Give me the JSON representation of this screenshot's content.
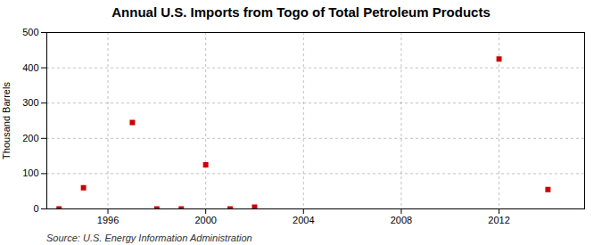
{
  "chart_data": {
    "type": "scatter",
    "title": "Annual U.S. Imports from Togo of Total Petroleum Products",
    "ylabel": "Thousand Barrels",
    "annotation": "Source: U.S. Energy Information Administration",
    "x": [
      1994,
      1995,
      1997,
      1998,
      1999,
      2000,
      2001,
      2002,
      2012,
      2014
    ],
    "values": [
      0,
      60,
      245,
      0,
      0,
      125,
      0,
      5,
      425,
      55
    ],
    "color": "#cc0000",
    "marker": "square",
    "xlim": [
      1993.5,
      2015.5
    ],
    "ylim": [
      0,
      500
    ],
    "xticks": [
      1996,
      2000,
      2004,
      2008,
      2012
    ],
    "yticks": [
      0,
      100,
      200,
      300,
      400,
      500
    ],
    "grid": true
  }
}
